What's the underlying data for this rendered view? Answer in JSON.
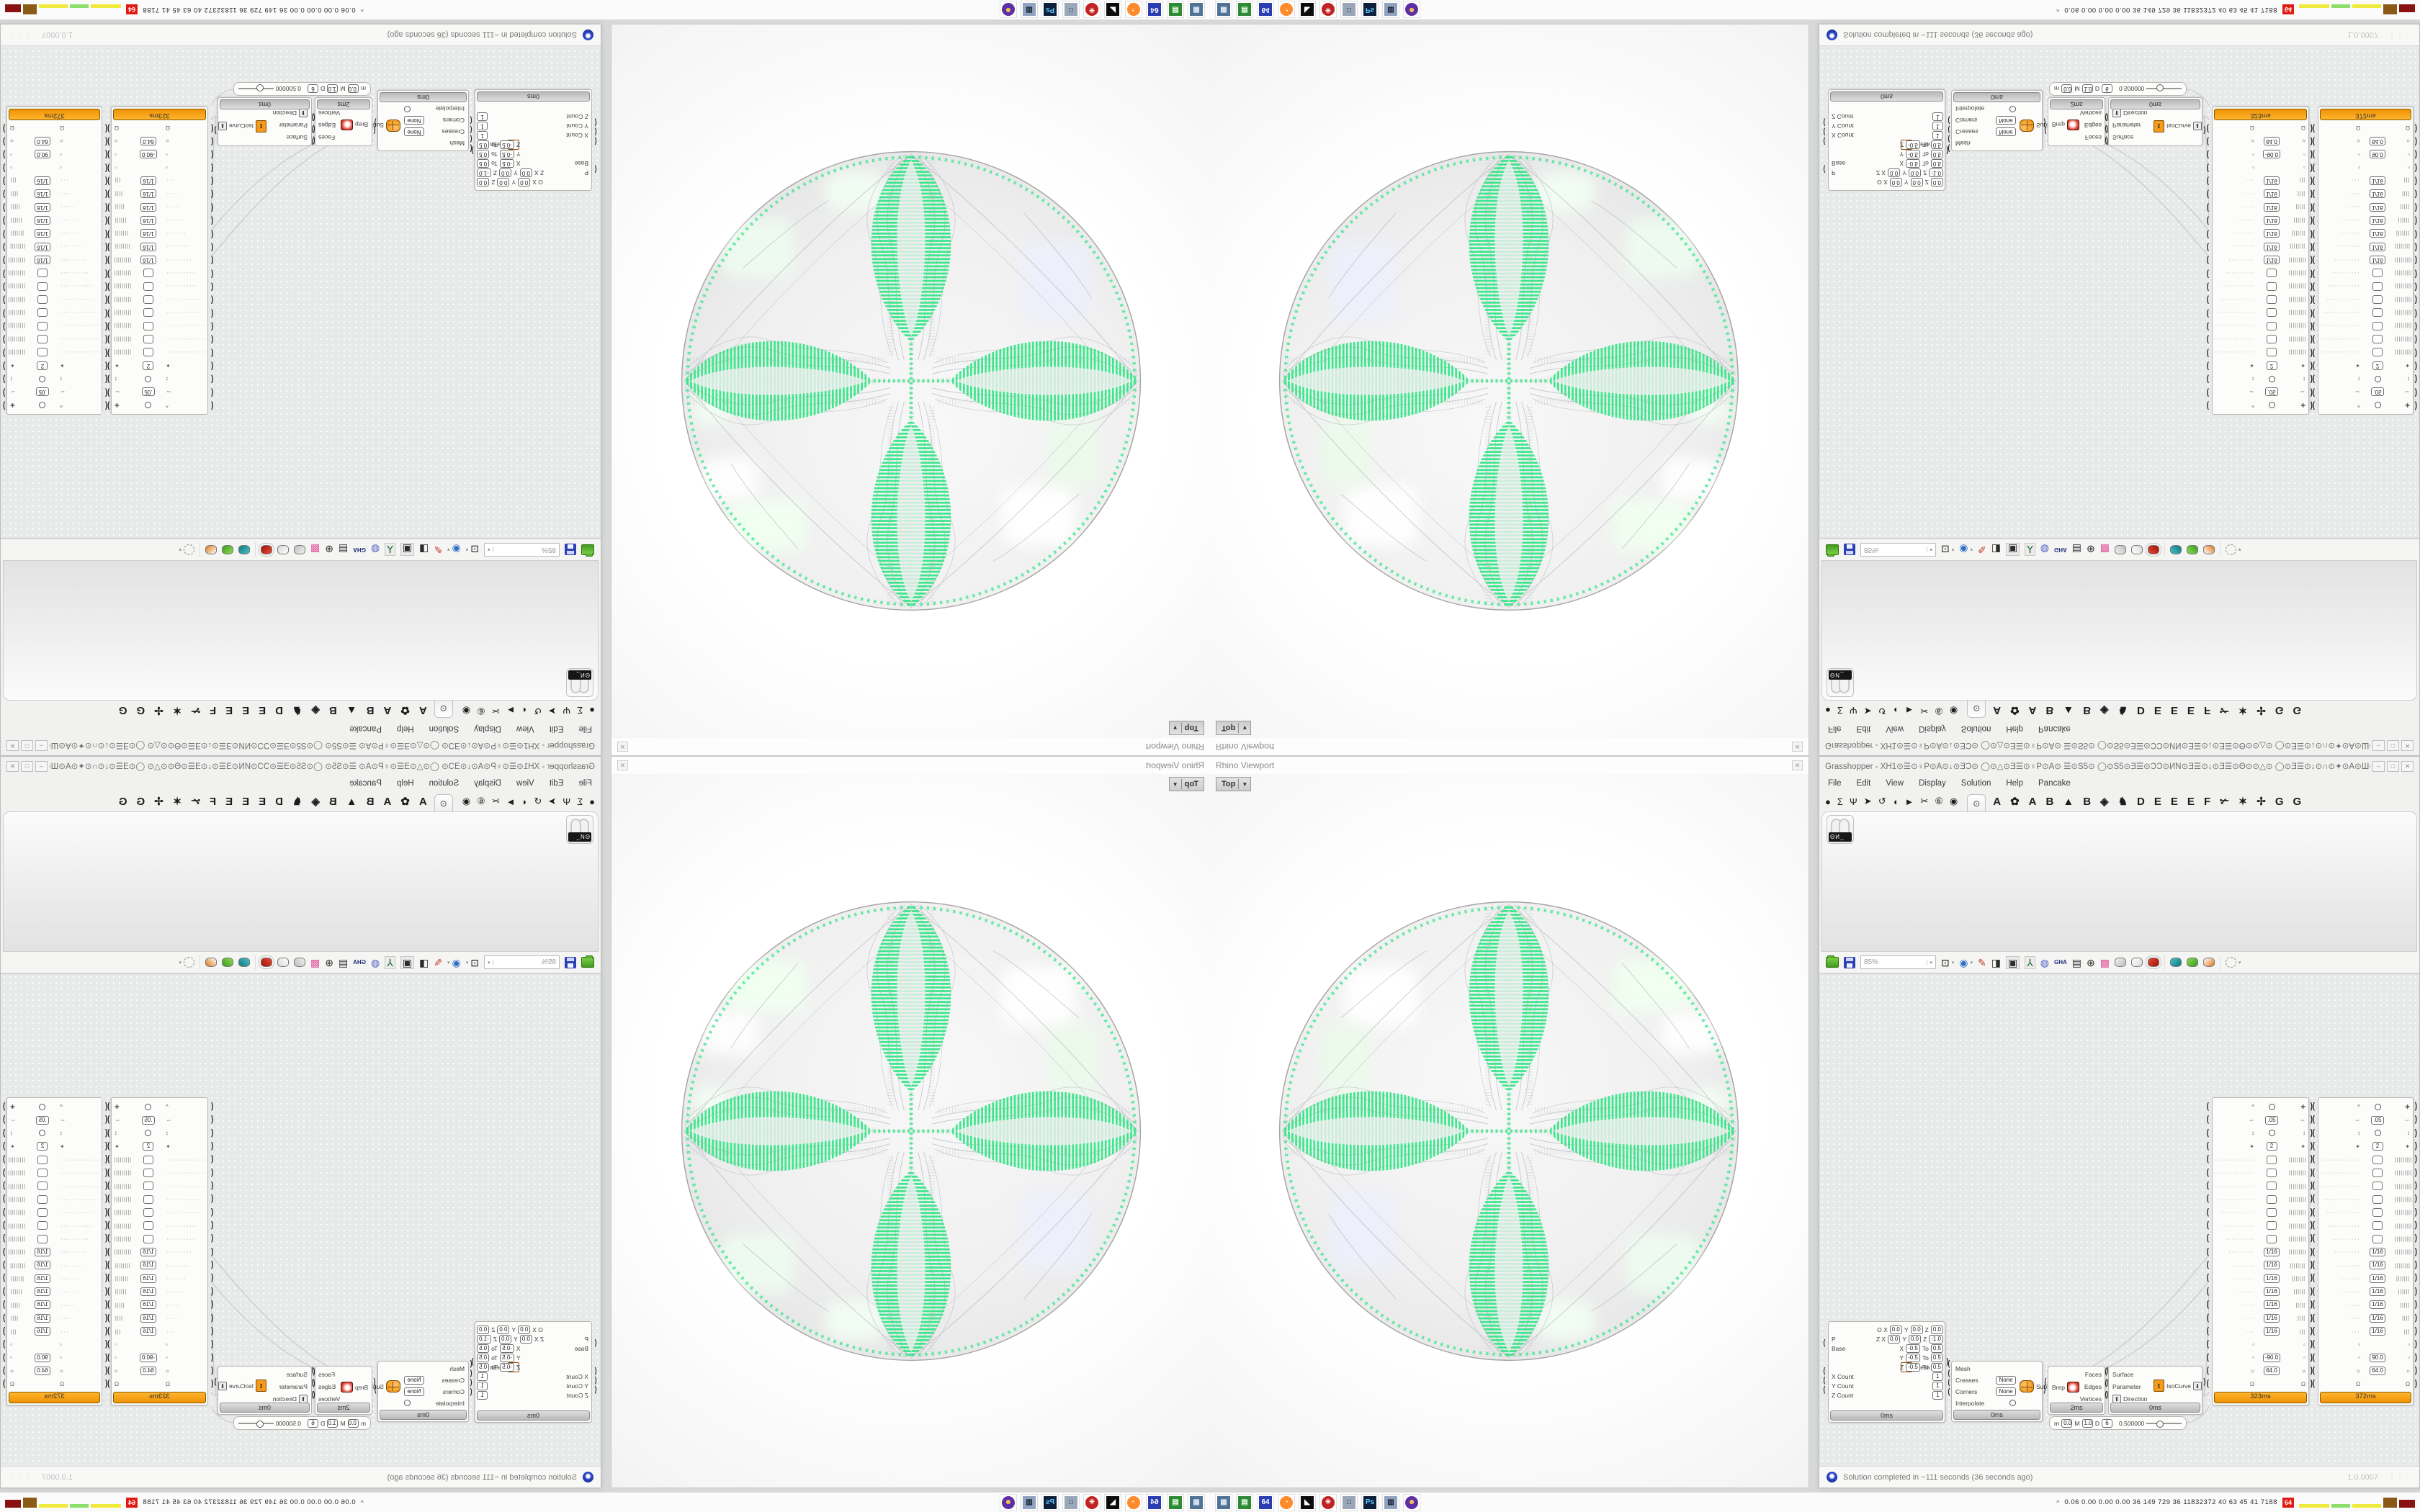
{
  "accent_green": "#3ee68c",
  "rhino_viewport": {
    "title": "Rhino Viewport",
    "close_glyph": "✕",
    "view_tab": "Top",
    "view_tab_arrow": "▼"
  },
  "gh": {
    "title": "Grasshopper - XH1⊙☰⊙♀P⊙A⊙↓⊙ƎƆ⊙ ◯⊙△⊙Ǝ☰⊙♀P⊙A⊙ ☰⊙S5⊙ ◯⊙S5⊙Ǝ☰⊙ƆƆ⊙ИN⊙Ǝ☰⊙↓⊙Ǝ☰⊙Θ⊙⊙△⊙ ◯⊙Ǝ☰⊙↓⊙∩⊙✦⊙A⊙Ш⊙↓⊙∩⊙ƆƆ⊙⊙Ɔ⊙⊙⊙⊙⊙⊙⊙⊙⊙⊙⊙Ɔ_",
    "win_buttons": [
      "–",
      "□",
      "✕"
    ],
    "menus": [
      "File",
      "Edit",
      "View",
      "Display",
      "Solution",
      "Help",
      "Pancake"
    ],
    "tab_icons": [
      "●",
      "Σ",
      "Ψ",
      "➤",
      "↺",
      "◖",
      "►",
      "✂",
      "⑥",
      "◉"
    ],
    "selected_tab_icon": "⊙",
    "tab_letters": [
      "A",
      "✿",
      "A",
      "B",
      "▲",
      "B",
      "◈",
      "♞",
      "D",
      "E",
      "E",
      "E",
      "F",
      "✃",
      "✶",
      "✢",
      "G",
      "G"
    ],
    "palette_badge": "ΘИ_",
    "toolbar": {
      "zoom_value": "85%",
      "zoom_arrow": "▾",
      "icons": [
        {
          "name": "zoom-extents-icon",
          "g": "⊡",
          "c": "#1b1b1b",
          "dd": true
        },
        {
          "name": "preview-eye-icon",
          "g": "◉",
          "c": "#2e6fc2",
          "dd": true
        },
        {
          "name": "flame-brush-icon",
          "g": "✎",
          "c": "#c0392b"
        },
        {
          "name": "speaker-icon",
          "g": "◨",
          "c": "#2b2b2b"
        },
        {
          "name": "boombox-icon",
          "g": "▣",
          "c": "#2b2b2b",
          "boxed": true
        },
        {
          "name": "rgb-axes-icon",
          "g": "⅄",
          "c": "#18641f",
          "boxed": true
        },
        {
          "name": "disco-ball-icon",
          "g": "◍",
          "c": "#4a5fc1"
        },
        {
          "name": "gha-icon",
          "g": "GHA",
          "c": "#1f2d7a",
          "small": true
        },
        {
          "name": "document-icon",
          "g": "▤",
          "c": "#333333"
        },
        {
          "name": "find-dollar-icon",
          "g": "⊕",
          "c": "#2b2b2b"
        },
        {
          "name": "package-icon",
          "g": "▩",
          "c": "#e0559a"
        },
        {
          "name": "preview-wire-icon",
          "type": "pill",
          "c1": "#f2f2f2",
          "c2": "#bdbdbd"
        },
        {
          "name": "preview-ghost-icon",
          "type": "pill",
          "c1": "#ffffff",
          "c2": "#d8d8d8"
        },
        {
          "name": "preview-shaded-icon",
          "type": "pill",
          "c1": "#e84a3a",
          "c2": "#a01205",
          "boxed": true
        },
        {
          "name": "sep"
        },
        {
          "name": "pipe-teal-icon",
          "type": "pill",
          "c1": "#47c3ca",
          "c2": "#11777d"
        },
        {
          "name": "pipe-green-icon",
          "type": "pill",
          "c1": "#8ade55",
          "c2": "#3a9a1d"
        },
        {
          "name": "sphere-half-orange-icon",
          "type": "pill",
          "c1": "#ffffff",
          "c2": "#e07818"
        },
        {
          "name": "sep"
        },
        {
          "name": "selection-region-icon",
          "type": "dashed",
          "dd": true
        }
      ]
    },
    "nodes": {
      "meshbox": {
        "rows": [
          {
            "label": "",
            "pairs": [
              [
                "O X",
                "0.0"
              ],
              [
                "Y",
                "0.0"
              ],
              [
                "Z",
                "0.0"
              ]
            ]
          },
          {
            "label": "P",
            "pairs": [
              [
                "Z X",
                "0.0"
              ],
              [
                "Y",
                "0.0"
              ],
              [
                "Z",
                "-1.0"
              ]
            ]
          },
          {
            "label": "Base",
            "pairs": [
              [
                "X",
                "-0.5"
              ],
              [
                "To",
                "0.5"
              ]
            ]
          },
          {
            "label": "",
            "pairs": [
              [
                "Y",
                "-0.5"
              ],
              [
                "To",
                "0.5"
              ]
            ]
          },
          {
            "label": "",
            "pairs": [
              [
                "Z",
                "-0.5"
              ],
              [
                "To",
                "0.5"
              ]
            ]
          },
          {
            "label": "X Count",
            "pairs": [
              [
                "",
                "1"
              ]
            ]
          },
          {
            "label": "Y Count",
            "pairs": [
              [
                "",
                "1"
              ]
            ]
          },
          {
            "label": "Z Count",
            "pairs": [
              [
                "",
                "1"
              ]
            ]
          }
        ],
        "output": "Mesh",
        "time": "0ms"
      },
      "subd": {
        "input": "Mesh",
        "rows": [
          [
            "Creases",
            "None"
          ],
          [
            "Corners",
            "None"
          ]
        ],
        "toggle_label": "Interpolate",
        "output": "SubD",
        "time": "0ms"
      },
      "brep": {
        "input": "Brep",
        "outputs": [
          "Faces",
          "Edges",
          "Vertices"
        ],
        "time": "2ms"
      },
      "iso": {
        "inputs": [
          "Surface",
          "Parameter",
          "Direction"
        ],
        "icon_letter": "t",
        "direction_glyph": "⬆",
        "output_glyph": "⬇",
        "output": "IsoCurve",
        "time": "0ms"
      },
      "domain_slider": {
        "items": [
          [
            "m",
            "0.0"
          ],
          [
            "M",
            "1.0"
          ],
          [
            "D",
            "6"
          ]
        ],
        "slider_value": "0.500000"
      },
      "tall": {
        "rows": [
          {
            "li": "^",
            "circle": true,
            "ri": "✚"
          },
          {
            "li": "⇔",
            "val": ".05",
            "ri": "⇔"
          },
          {
            "li": "↕",
            "circle": true,
            "ri": "↕"
          },
          {
            "li": "✦",
            "val": "2",
            "ri": "✦"
          },
          {
            "dots": 16,
            "val": "",
            "hatch": 16
          },
          {
            "dots": 15,
            "val": "",
            "hatch": 15
          },
          {
            "dots": 14,
            "val": "",
            "hatch": 14
          },
          {
            "dots": 13,
            "val": "",
            "hatch": 13
          },
          {
            "dots": 12,
            "val": "",
            "hatch": 12
          },
          {
            "dots": 11,
            "val": "",
            "hatch": 11
          },
          {
            "dots": 10,
            "val": "",
            "hatch": 10
          },
          {
            "dots": 9,
            "val": "1/16",
            "hatch": 9
          },
          {
            "dots": 8,
            "val": "1/16",
            "hatch": 8
          },
          {
            "dots": 7,
            "val": "1/16",
            "hatch": 7
          },
          {
            "dots": 6,
            "val": "1/16",
            "hatch": 6
          },
          {
            "dots": 5,
            "val": "1/16",
            "hatch": 5
          },
          {
            "dots": 4,
            "val": "1/16",
            "hatch": 4
          },
          {
            "dots": 3,
            "val": "1/16",
            "hatch": 3
          },
          {
            "li": "▫",
            "ri": "▫"
          },
          {
            "li": "▫",
            "val": "@angle",
            "ri": "▫"
          },
          {
            "li": "○",
            "val": "64.0",
            "ri": "○"
          },
          {
            "li": "Ω",
            "ri": "Ω"
          }
        ],
        "comps": [
          {
            "angle": "-90.0",
            "time": "323ms"
          },
          {
            "angle": "90.0",
            "time": "372ms"
          }
        ]
      }
    },
    "statusbar": {
      "text": "Solution completed in ~111 seconds (36 seconds ago)",
      "version": "1.0.0007",
      "grip": "⋮⋮⋮"
    }
  },
  "taskbar": {
    "caret": "^",
    "stats": "0.06 0.00 0.00 0.00   36   149   729   36   11832372   40   63   45   41   7188",
    "badge": "64",
    "blocks": [
      {
        "c": "#f0ea3c",
        "w": 42,
        "h": 5
      },
      {
        "c": "#8ce06a",
        "w": 26,
        "h": 5
      },
      {
        "c": "#f0ea3c",
        "w": 40,
        "h": 5
      },
      {
        "c": "#8a5a16",
        "w": 19,
        "h": 14
      },
      {
        "c": "#8b1212",
        "w": 22,
        "h": 11
      }
    ],
    "icons": [
      {
        "name": "taskbar-display-app-icon",
        "bg": "#4f7296",
        "g": "▦",
        "fg": "#dfe9f2"
      },
      {
        "name": "taskbar-green-device-icon",
        "bg": "#2e8b33",
        "g": "▤",
        "fg": "#eaffea"
      },
      {
        "name": "taskbar-floppy64-icon",
        "bg": "#2a3db0",
        "g": "64",
        "fg": "#ffffff"
      },
      {
        "name": "taskbar-firefox-icon",
        "bg": "#ff8a2a",
        "g": "◔",
        "fg": "#ffffff",
        "round": true
      },
      {
        "name": "taskbar-bw-app-icon",
        "bg": "#0c0c0c",
        "g": "◣",
        "fg": "#ffffff"
      },
      {
        "name": "taskbar-red-emblem-icon",
        "bg": "#c22222",
        "g": "✳",
        "fg": "#ffffff",
        "round": true
      },
      {
        "name": "taskbar-window-app-icon",
        "bg": "#9aa7b8",
        "g": "□",
        "fg": "#243242"
      },
      {
        "name": "taskbar-photoshop-icon",
        "bg": "#0e1f3d",
        "g": "Ps",
        "fg": "#5ac8fa"
      },
      {
        "name": "taskbar-control-panel-icon",
        "bg": "#8fa3c0",
        "g": "▥",
        "fg": "#17202e"
      },
      {
        "name": "taskbar-purple-app-icon",
        "bg": "#5d2ea6",
        "g": "☻",
        "fg": "#ffd24a",
        "round": true
      }
    ]
  }
}
